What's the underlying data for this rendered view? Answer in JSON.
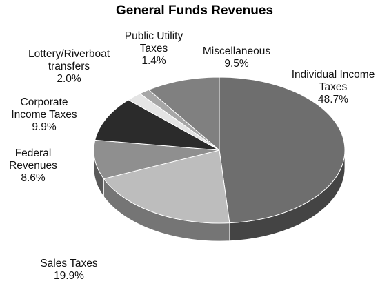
{
  "chart_data": {
    "type": "pie",
    "title": "General Funds Revenues",
    "three_d": true,
    "start_angle_deg": -90,
    "direction": "clockwise",
    "slices": [
      {
        "label_lines": [
          "Individual Income",
          "Taxes"
        ],
        "percent_text": "48.7%",
        "value": 48.7,
        "color": "#6e6e6e"
      },
      {
        "label_lines": [
          "Sales Taxes"
        ],
        "percent_text": "19.9%",
        "value": 19.9,
        "color": "#bdbdbd"
      },
      {
        "label_lines": [
          "Federal",
          "Revenues"
        ],
        "percent_text": "8.6%",
        "value": 8.6,
        "color": "#8f8f8f"
      },
      {
        "label_lines": [
          "Corporate",
          "Income Taxes"
        ],
        "percent_text": "9.9%",
        "value": 9.9,
        "color": "#2b2b2b"
      },
      {
        "label_lines": [
          "Lottery/Riverboat",
          "transfers"
        ],
        "percent_text": "2.0%",
        "value": 2.0,
        "color": "#e4e4e4"
      },
      {
        "label_lines": [
          "Public Utility",
          "Taxes"
        ],
        "percent_text": "1.4%",
        "value": 1.4,
        "color": "#a6a6a6"
      },
      {
        "label_lines": [
          "Miscellaneous"
        ],
        "percent_text": "9.5%",
        "value": 9.5,
        "color": "#808080"
      }
    ]
  }
}
